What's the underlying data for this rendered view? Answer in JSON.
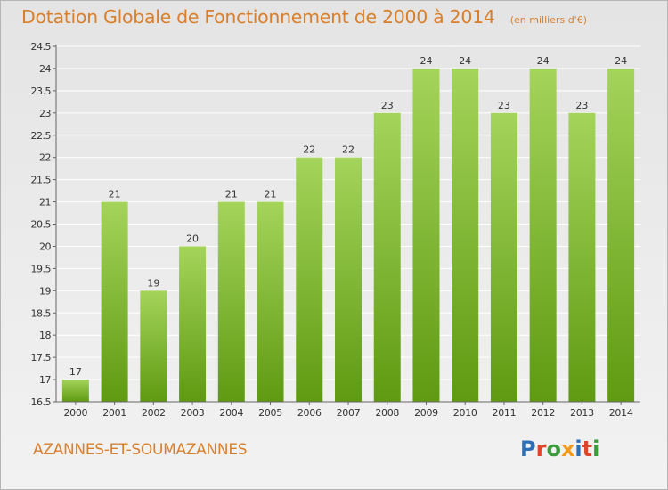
{
  "header": {
    "title": "Dotation Globale de Fonctionnement de 2000 à 2014",
    "unit": "(en milliers d'€)"
  },
  "footer": {
    "commune": "AZANNES-ET-SOUMAZANNES",
    "brand": {
      "letters": [
        {
          "char": "P",
          "color": "#2f6fb6"
        },
        {
          "char": "r",
          "color": "#e0452b"
        },
        {
          "char": "o",
          "color": "#3c9b3c"
        },
        {
          "char": "x",
          "color": "#f29a1c"
        },
        {
          "char": "i",
          "color": "#2f6fb6"
        },
        {
          "char": "t",
          "color": "#e0452b"
        },
        {
          "char": "i",
          "color": "#3c9b3c"
        }
      ]
    }
  },
  "chart_data": {
    "type": "bar",
    "categories": [
      "2000",
      "2001",
      "2002",
      "2003",
      "2004",
      "2005",
      "2006",
      "2007",
      "2008",
      "2009",
      "2010",
      "2011",
      "2012",
      "2013",
      "2014"
    ],
    "values": [
      17,
      21,
      19,
      20,
      21,
      21,
      22,
      22,
      23,
      24,
      24,
      23,
      24,
      23,
      24
    ],
    "data_labels": [
      "17",
      "21",
      "19",
      "20",
      "21",
      "21",
      "22",
      "22",
      "23",
      "24",
      "24",
      "23",
      "24",
      "23",
      "24"
    ],
    "yticks": [
      16.5,
      17,
      17.5,
      18,
      18.5,
      19,
      19.5,
      20,
      20.5,
      21,
      21.5,
      22,
      22.5,
      23,
      23.5,
      24,
      24.5
    ],
    "ytick_labels": [
      "16.5",
      "17",
      "17.5",
      "18",
      "18.5",
      "19",
      "19.5",
      "20",
      "20.5",
      "21",
      "21.5",
      "22",
      "22.5",
      "23",
      "23.5",
      "24",
      "24.5"
    ],
    "ylim": [
      16.5,
      24.5
    ],
    "grid": true,
    "colors": {
      "bar_light": "#a4d45a",
      "bar_dark": "#5f9a12",
      "grid": "#ffffff",
      "axis": "#666666",
      "text": "#333333"
    }
  }
}
